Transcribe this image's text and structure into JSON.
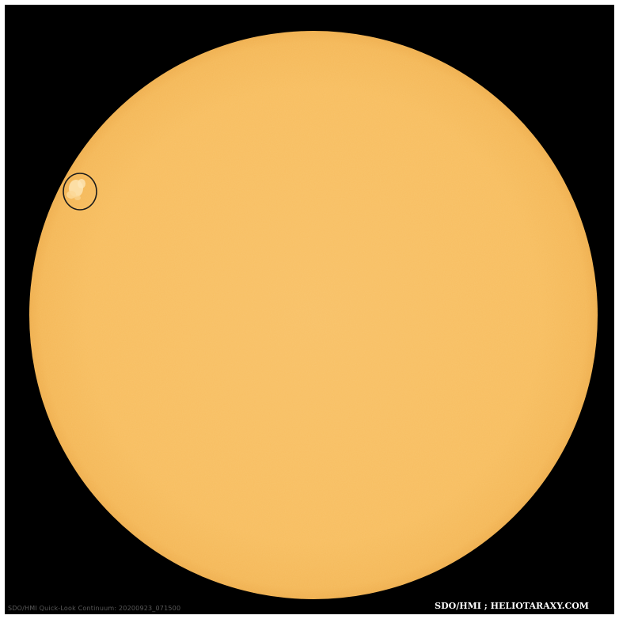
{
  "image": {
    "caption_left": "SDO/HMI Quick-Look Continuum: 20200923_071500",
    "caption_right": "SDO/HMI ; HELIOTARAXY.COM"
  },
  "colors": {
    "background": "#000000",
    "sun_disk": "#f8bf62",
    "sun_limb": "#f2b352",
    "facula": "#fde2ad",
    "marker_ring": "#1a1a1a"
  },
  "features": {
    "marked_region": "facular-region-east-limb"
  }
}
